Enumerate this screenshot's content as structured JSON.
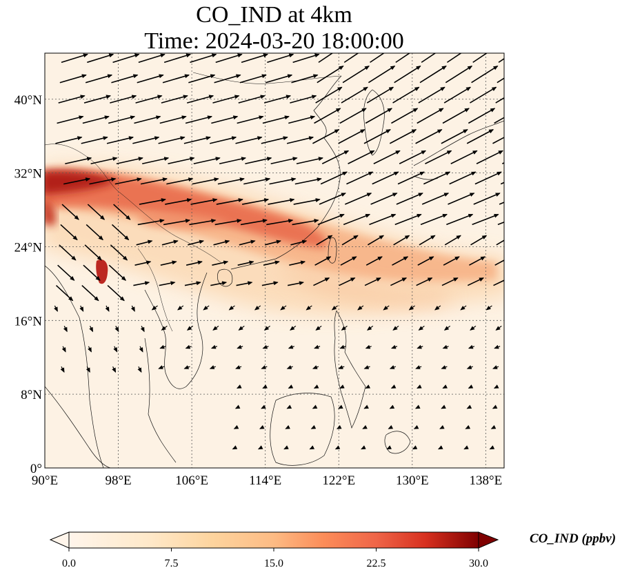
{
  "title": {
    "line1": "CO_IND at 4km",
    "line2": "Time: 2024-03-20 18:00:00"
  },
  "map": {
    "lon_ticks": [
      "90°E",
      "98°E",
      "106°E",
      "114°E",
      "122°E",
      "130°E",
      "138°E"
    ],
    "lat_ticks": [
      "0°",
      "8°N",
      "16°N",
      "24°N",
      "32°N",
      "40°N"
    ],
    "lon_range": [
      90,
      140
    ],
    "lat_range": [
      0,
      45
    ],
    "gridlines": "dotted"
  },
  "colorbar": {
    "label": "CO_IND (ppbv)",
    "ticks": [
      "0.0",
      "7.5",
      "15.0",
      "22.5",
      "30.0"
    ],
    "range": [
      0,
      30
    ],
    "colormap": [
      "#fff5eb",
      "#fdd49e",
      "#fdbb84",
      "#fc8d59",
      "#ef6548",
      "#d7301f",
      "#b30000",
      "#7f0000"
    ],
    "extend": "both"
  }
}
